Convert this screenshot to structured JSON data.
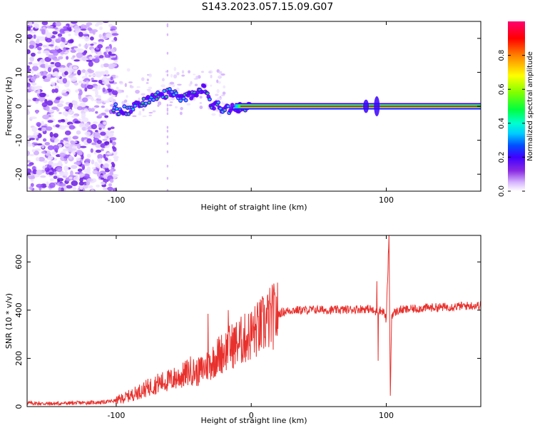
{
  "title": "S143.2023.057.15.09.G07",
  "chart_data": [
    {
      "type": "heatmap",
      "xlabel": "Height of straight line (km)",
      "ylabel": "Frequency (Hz)",
      "xlim": [
        -166,
        170
      ],
      "ylim": [
        -25,
        25
      ],
      "xticks": [
        -100,
        0,
        100
      ],
      "xtick_labels": [
        "-100",
        "",
        "100"
      ],
      "yticks": [
        -20,
        -10,
        0,
        10,
        20
      ],
      "colorbar": {
        "label": "Normalized spectral amplitude",
        "range": [
          0,
          1
        ],
        "ticks": [
          0.0,
          0.2,
          0.4,
          0.6,
          0.8
        ],
        "colormap": [
          "#ffffff",
          "#d8b8ff",
          "#8a2be2",
          "#4000ff",
          "#0000ff",
          "#00aaff",
          "#00ffff",
          "#00ff60",
          "#40ff00",
          "#c0ff00",
          "#ffff00",
          "#ff8000",
          "#ff0000",
          "#ff0060"
        ]
      },
      "ridge": {
        "description_points": [
          {
            "x": -100,
            "y": -1.5
          },
          {
            "x": -90,
            "y": -1.0
          },
          {
            "x": -80,
            "y": 1.0
          },
          {
            "x": -70,
            "y": 3.0
          },
          {
            "x": -60,
            "y": 4.0
          },
          {
            "x": -50,
            "y": 2.0
          },
          {
            "x": -40,
            "y": 4.5
          },
          {
            "x": -35,
            "y": 5.0
          },
          {
            "x": -30,
            "y": 1.0
          },
          {
            "x": -20,
            "y": -1.0
          },
          {
            "x": -10,
            "y": -0.5
          },
          {
            "x": 0,
            "y": 0
          },
          {
            "x": 170,
            "y": 0
          }
        ]
      }
    },
    {
      "type": "line",
      "xlabel": "Height of straight line (km)",
      "ylabel": "SNR (10 * v/v)",
      "xlim": [
        -166,
        170
      ],
      "ylim": [
        0,
        710
      ],
      "xticks": [
        -100,
        0,
        100
      ],
      "xtick_labels": [
        "-100",
        "0",
        "100"
      ],
      "yticks": [
        0,
        200,
        400,
        600
      ],
      "color": "#e8302c",
      "series": [
        {
          "x": [
            -166,
            -150,
            -130,
            -110,
            -100,
            -90,
            -80,
            -70,
            -60,
            -50,
            -45,
            -40,
            -35,
            -30,
            -25,
            -20,
            -15,
            -10,
            -5,
            0,
            5,
            10,
            15,
            20,
            25,
            30,
            40,
            50,
            60,
            70,
            80,
            88,
            92,
            95,
            98,
            100,
            102,
            103,
            104,
            106,
            110,
            120,
            130,
            140,
            150,
            160,
            170
          ],
          "y": [
            15,
            12,
            15,
            18,
            25,
            45,
            70,
            95,
            110,
            130,
            150,
            140,
            160,
            180,
            210,
            230,
            250,
            265,
            280,
            300,
            320,
            345,
            370,
            385,
            395,
            400,
            400,
            402,
            400,
            402,
            405,
            405,
            390,
            400,
            395,
            360,
            700,
            45,
            380,
            390,
            400,
            405,
            410,
            412,
            415,
            418,
            420
          ]
        }
      ],
      "spikes": [
        {
          "x": -32,
          "y": 385
        },
        {
          "x": -17,
          "y": 400
        },
        {
          "x": 93,
          "y": 520
        },
        {
          "x": 94,
          "y": 190
        },
        {
          "x": 102,
          "y": 710
        },
        {
          "x": 103,
          "y": 45
        }
      ]
    }
  ]
}
